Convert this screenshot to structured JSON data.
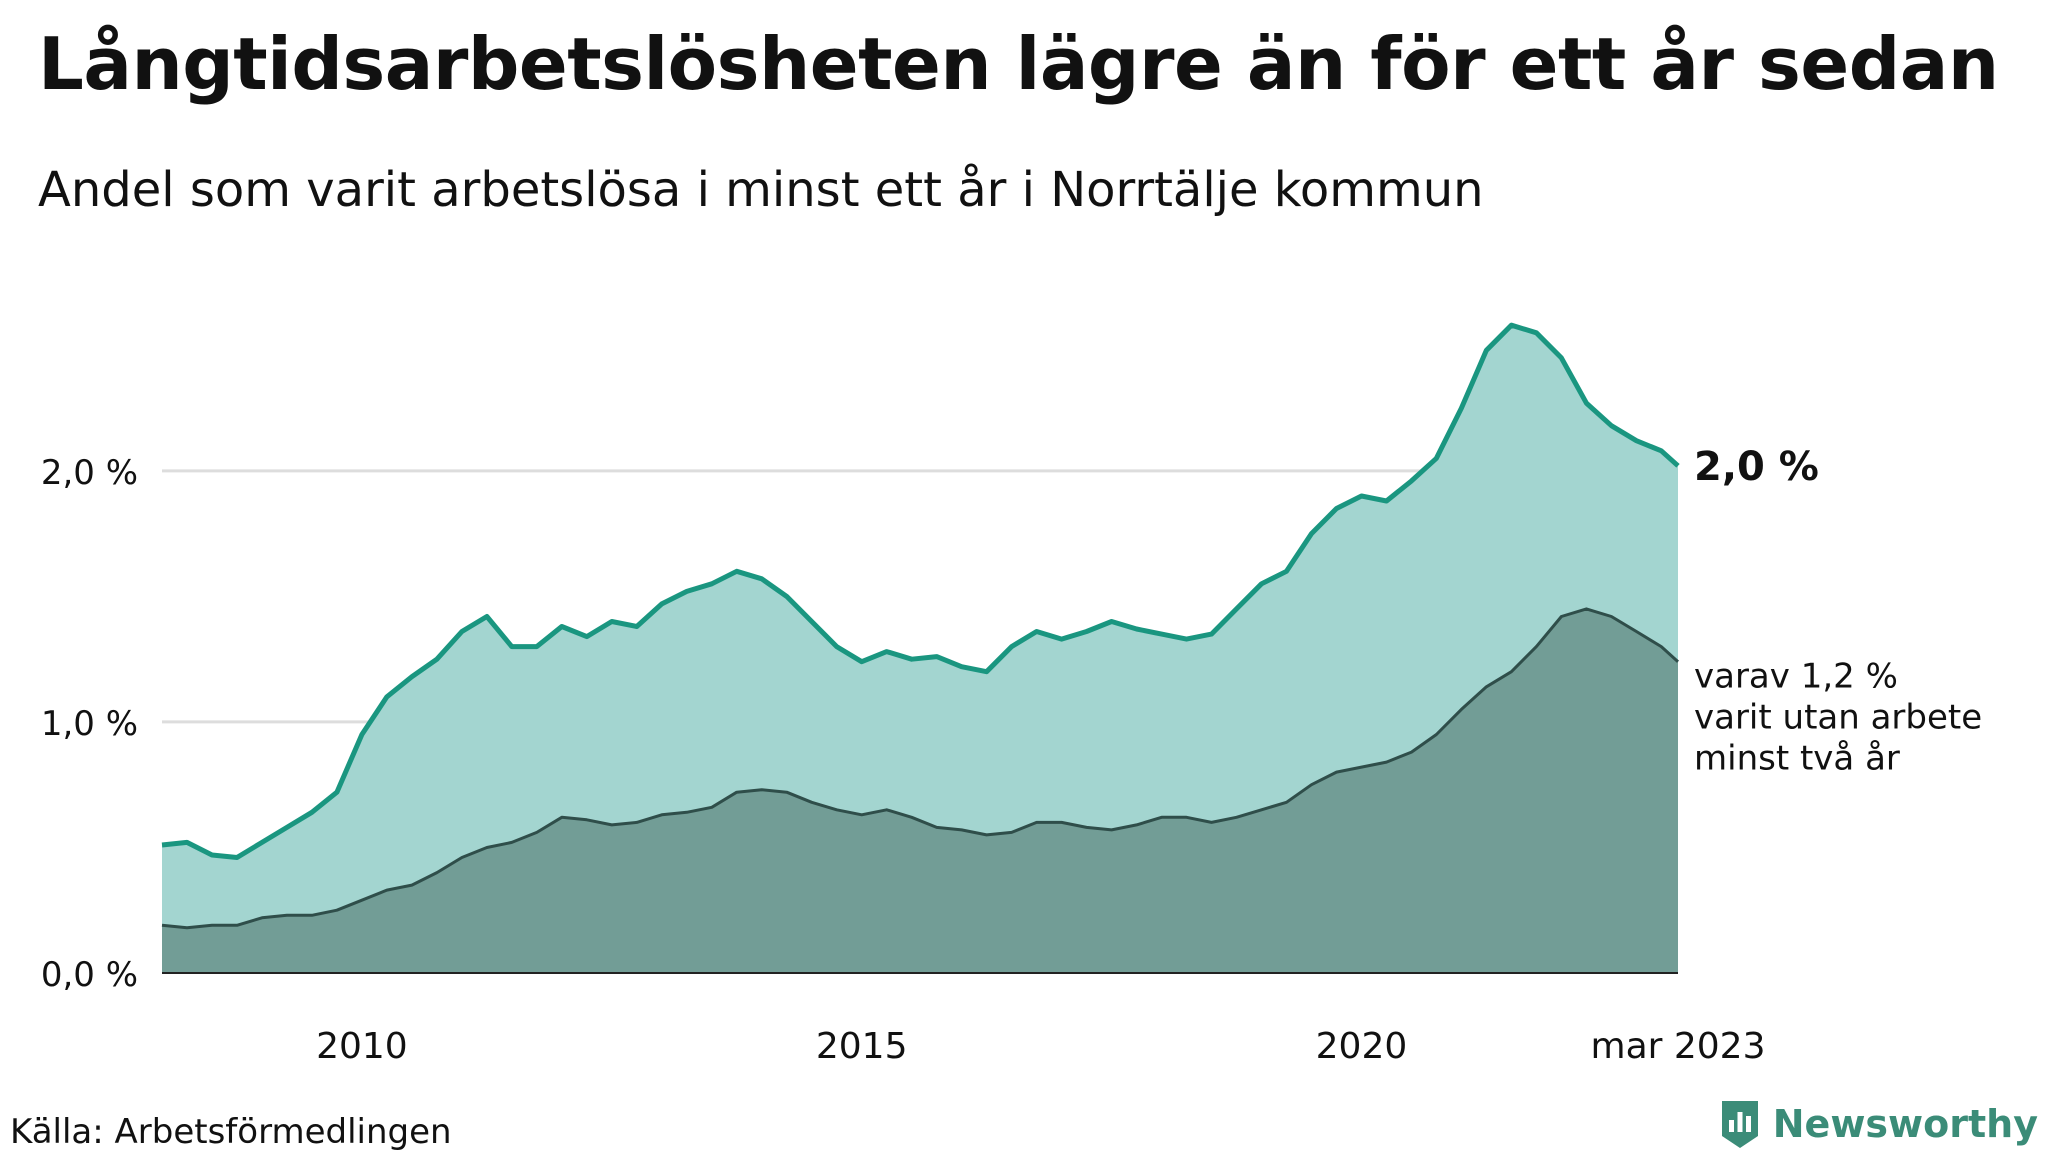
{
  "title": "Långtidsarbetslösheten lägre än för ett år sedan",
  "subtitle": "Andel som varit arbetslösa i minst ett år i Norrtälje kommun",
  "source": "Källa: Arbetsförmedlingen",
  "brand": "Newsworthy",
  "colors": {
    "total_line": "#1a9680",
    "total_fill": "#a3d5d0",
    "long_fill": "#729d96",
    "long_line": "#2f4e4a",
    "grid": "#dddddd",
    "brand": "#3b8c78"
  },
  "chart_data": {
    "type": "area",
    "x_range": [
      "2008-01",
      "2023-03"
    ],
    "ylim": [
      0,
      2.8
    ],
    "y_ticks": [
      {
        "value": 0,
        "label": "0,0 %"
      },
      {
        "value": 1,
        "label": "1,0 %"
      },
      {
        "value": 2,
        "label": "2,0 %"
      }
    ],
    "x_ticks": [
      {
        "date": "2010-01",
        "label": "2010"
      },
      {
        "date": "2015-01",
        "label": "2015"
      },
      {
        "date": "2020-01",
        "label": "2020"
      },
      {
        "date": "2023-03",
        "label": "mar 2023"
      }
    ],
    "grid": "horizontal",
    "series": [
      {
        "key": "total",
        "end_label": "2,0 %",
        "points": [
          [
            "2008-01",
            0.51
          ],
          [
            "2008-04",
            0.52
          ],
          [
            "2008-07",
            0.47
          ],
          [
            "2008-10",
            0.46
          ],
          [
            "2009-01",
            0.52
          ],
          [
            "2009-04",
            0.58
          ],
          [
            "2009-07",
            0.64
          ],
          [
            "2009-10",
            0.72
          ],
          [
            "2010-01",
            0.95
          ],
          [
            "2010-04",
            1.1
          ],
          [
            "2010-07",
            1.18
          ],
          [
            "2010-10",
            1.25
          ],
          [
            "2011-01",
            1.36
          ],
          [
            "2011-04",
            1.42
          ],
          [
            "2011-07",
            1.3
          ],
          [
            "2011-10",
            1.3
          ],
          [
            "2012-01",
            1.38
          ],
          [
            "2012-04",
            1.34
          ],
          [
            "2012-07",
            1.4
          ],
          [
            "2012-10",
            1.38
          ],
          [
            "2013-01",
            1.47
          ],
          [
            "2013-04",
            1.52
          ],
          [
            "2013-07",
            1.55
          ],
          [
            "2013-10",
            1.6
          ],
          [
            "2014-01",
            1.57
          ],
          [
            "2014-04",
            1.5
          ],
          [
            "2014-07",
            1.4
          ],
          [
            "2014-10",
            1.3
          ],
          [
            "2015-01",
            1.24
          ],
          [
            "2015-04",
            1.28
          ],
          [
            "2015-07",
            1.25
          ],
          [
            "2015-10",
            1.26
          ],
          [
            "2016-01",
            1.22
          ],
          [
            "2016-04",
            1.2
          ],
          [
            "2016-07",
            1.3
          ],
          [
            "2016-10",
            1.36
          ],
          [
            "2017-01",
            1.33
          ],
          [
            "2017-04",
            1.36
          ],
          [
            "2017-07",
            1.4
          ],
          [
            "2017-10",
            1.37
          ],
          [
            "2018-01",
            1.35
          ],
          [
            "2018-04",
            1.33
          ],
          [
            "2018-07",
            1.35
          ],
          [
            "2018-10",
            1.45
          ],
          [
            "2019-01",
            1.55
          ],
          [
            "2019-04",
            1.6
          ],
          [
            "2019-07",
            1.75
          ],
          [
            "2019-10",
            1.85
          ],
          [
            "2020-01",
            1.9
          ],
          [
            "2020-04",
            1.88
          ],
          [
            "2020-07",
            1.96
          ],
          [
            "2020-10",
            2.05
          ],
          [
            "2021-01",
            2.25
          ],
          [
            "2021-04",
            2.48
          ],
          [
            "2021-07",
            2.58
          ],
          [
            "2021-10",
            2.55
          ],
          [
            "2022-01",
            2.45
          ],
          [
            "2022-04",
            2.27
          ],
          [
            "2022-07",
            2.18
          ],
          [
            "2022-10",
            2.12
          ],
          [
            "2023-01",
            2.08
          ],
          [
            "2023-03",
            2.02
          ]
        ]
      },
      {
        "key": "long",
        "end_label_lines": [
          "varav 1,2 %",
          "varit utan arbete",
          "minst två år"
        ],
        "points": [
          [
            "2008-01",
            0.19
          ],
          [
            "2008-04",
            0.18
          ],
          [
            "2008-07",
            0.19
          ],
          [
            "2008-10",
            0.19
          ],
          [
            "2009-01",
            0.22
          ],
          [
            "2009-04",
            0.23
          ],
          [
            "2009-07",
            0.23
          ],
          [
            "2009-10",
            0.25
          ],
          [
            "2010-01",
            0.29
          ],
          [
            "2010-04",
            0.33
          ],
          [
            "2010-07",
            0.35
          ],
          [
            "2010-10",
            0.4
          ],
          [
            "2011-01",
            0.46
          ],
          [
            "2011-04",
            0.5
          ],
          [
            "2011-07",
            0.52
          ],
          [
            "2011-10",
            0.56
          ],
          [
            "2012-01",
            0.62
          ],
          [
            "2012-04",
            0.61
          ],
          [
            "2012-07",
            0.59
          ],
          [
            "2012-10",
            0.6
          ],
          [
            "2013-01",
            0.63
          ],
          [
            "2013-04",
            0.64
          ],
          [
            "2013-07",
            0.66
          ],
          [
            "2013-10",
            0.72
          ],
          [
            "2014-01",
            0.73
          ],
          [
            "2014-04",
            0.72
          ],
          [
            "2014-07",
            0.68
          ],
          [
            "2014-10",
            0.65
          ],
          [
            "2015-01",
            0.63
          ],
          [
            "2015-04",
            0.65
          ],
          [
            "2015-07",
            0.62
          ],
          [
            "2015-10",
            0.58
          ],
          [
            "2016-01",
            0.57
          ],
          [
            "2016-04",
            0.55
          ],
          [
            "2016-07",
            0.56
          ],
          [
            "2016-10",
            0.6
          ],
          [
            "2017-01",
            0.6
          ],
          [
            "2017-04",
            0.58
          ],
          [
            "2017-07",
            0.57
          ],
          [
            "2017-10",
            0.59
          ],
          [
            "2018-01",
            0.62
          ],
          [
            "2018-04",
            0.62
          ],
          [
            "2018-07",
            0.6
          ],
          [
            "2018-10",
            0.62
          ],
          [
            "2019-01",
            0.65
          ],
          [
            "2019-04",
            0.68
          ],
          [
            "2019-07",
            0.75
          ],
          [
            "2019-10",
            0.8
          ],
          [
            "2020-01",
            0.82
          ],
          [
            "2020-04",
            0.84
          ],
          [
            "2020-07",
            0.88
          ],
          [
            "2020-10",
            0.95
          ],
          [
            "2021-01",
            1.05
          ],
          [
            "2021-04",
            1.14
          ],
          [
            "2021-07",
            1.2
          ],
          [
            "2021-10",
            1.3
          ],
          [
            "2022-01",
            1.42
          ],
          [
            "2022-04",
            1.45
          ],
          [
            "2022-07",
            1.42
          ],
          [
            "2022-10",
            1.36
          ],
          [
            "2023-01",
            1.3
          ],
          [
            "2023-03",
            1.24
          ]
        ]
      }
    ]
  }
}
